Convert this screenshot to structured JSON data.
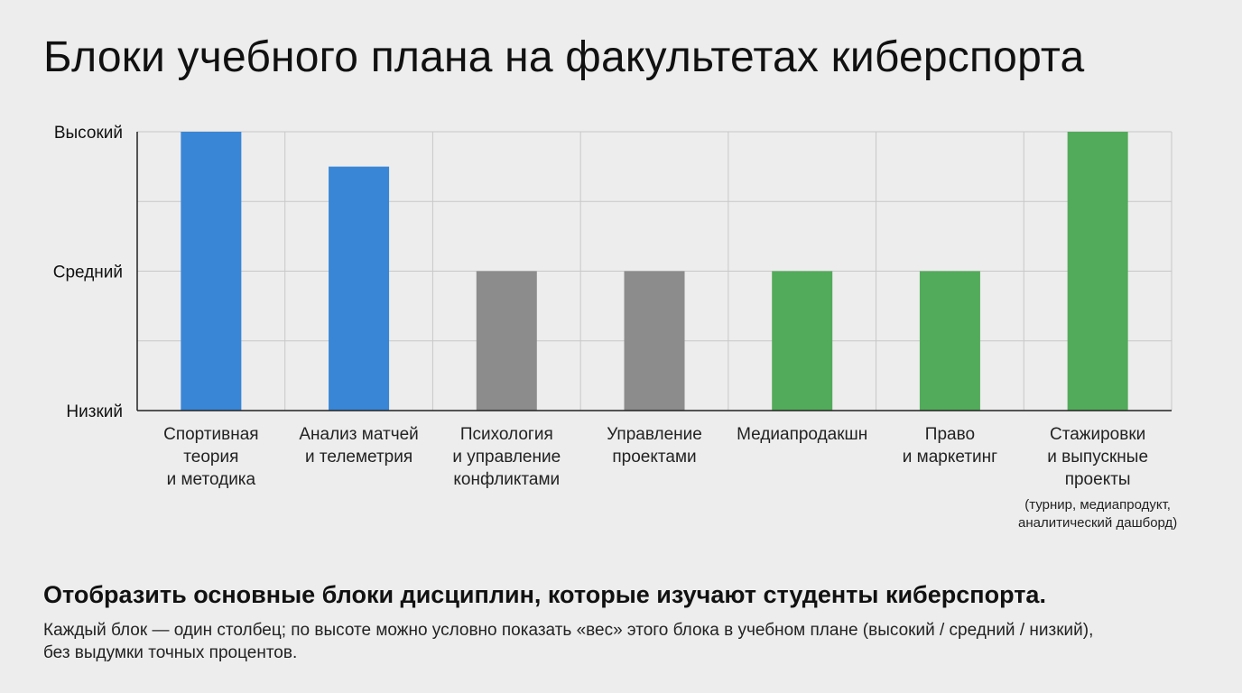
{
  "title": "Блоки учебного плана на факультетах киберспорта",
  "footer": {
    "heading": "Отобразить основные блоки дисциплин, которые изучают студенты киберспорта.",
    "text": "Каждый блок — один столбец; по высоте можно условно показать «вес» этого блока в учебном плане (высокий / средний / низкий), без выдумки точных процентов."
  },
  "colors": {
    "blue": "#3a86d6",
    "gray": "#8c8c8c",
    "green": "#52ab5a",
    "grid": "#c8c8c8",
    "axis": "#222222"
  },
  "chart_data": {
    "type": "bar",
    "title": "Блоки учебного плана на факультетах киберспорта",
    "xlabel": "",
    "ylabel": "",
    "ylim": [
      0,
      2
    ],
    "yticks": [
      {
        "value": 0,
        "label": "Низкий"
      },
      {
        "value": 1,
        "label": "Средний"
      },
      {
        "value": 2,
        "label": "Высокий"
      }
    ],
    "grid": true,
    "categories": [
      {
        "lines": [
          "Спортивная",
          "теория",
          "и методика"
        ],
        "value": 2,
        "color": "blue"
      },
      {
        "lines": [
          "Анализ матчей",
          "и телеметрия"
        ],
        "value": 1.75,
        "color": "blue"
      },
      {
        "lines": [
          "Психология",
          "и управление",
          "конфликтами"
        ],
        "value": 1,
        "color": "gray"
      },
      {
        "lines": [
          "Управление",
          "проектами"
        ],
        "value": 1,
        "color": "gray"
      },
      {
        "lines": [
          "Медиапродакшн"
        ],
        "value": 1,
        "color": "green"
      },
      {
        "lines": [
          "Право",
          "и маркетинг"
        ],
        "value": 1,
        "color": "green"
      },
      {
        "lines": [
          "Стажировки",
          "и выпускные",
          "проекты"
        ],
        "note": [
          "(турнир, медиапродукт,",
          "аналитический дашборд)"
        ],
        "value": 2,
        "color": "green"
      }
    ]
  }
}
